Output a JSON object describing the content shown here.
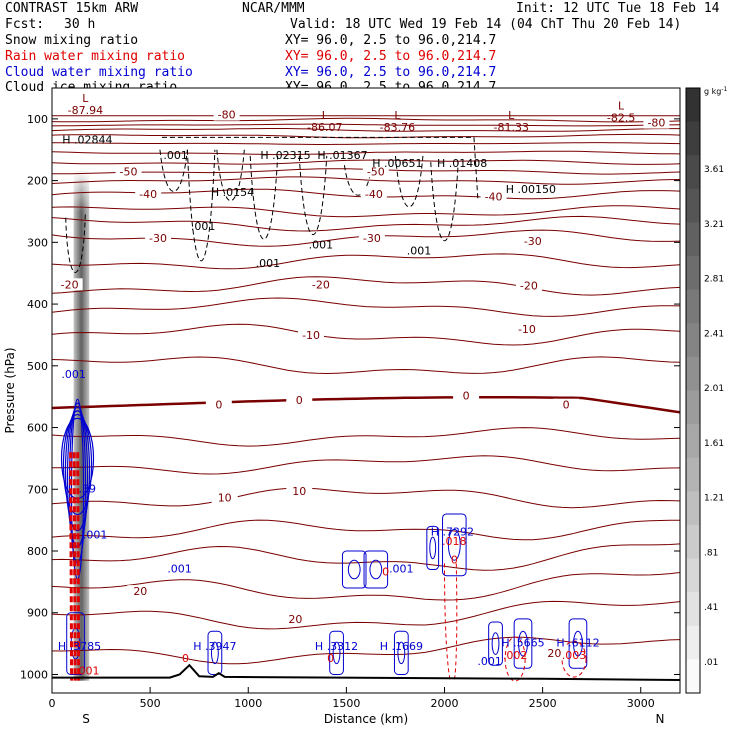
{
  "header": {
    "model": "CONTRAST 15km ARW",
    "org": "NCAR/MMM",
    "init": "Init: 12 UTC Tue 18 Feb 14",
    "fcst_label": "Fcst:",
    "fcst_value": "30 h",
    "valid": "Valid: 18 UTC Wed 19 Feb 14 (04 ChT Thu 20 Feb 14)"
  },
  "fields": [
    {
      "name": "Snow mixing ratio",
      "xy": "XY=  96.0,  2.5 to  96.0,214.7",
      "color": "#000000"
    },
    {
      "name": "Rain water mixing ratio",
      "xy": "XY=  96.0,  2.5 to  96.0,214.7",
      "color": "#e00000"
    },
    {
      "name": "Cloud water mixing ratio",
      "xy": "XY=  96.0,  2.5 to  96.0,214.7",
      "color": "#0000d0"
    },
    {
      "name": "Cloud ice mixing ratio",
      "xy": "XY=  96.0,  2.5 to  96.0,214.7",
      "color": "#000000"
    }
  ],
  "chart_data": {
    "type": "cross-section contour",
    "xlabel": "Distance (km)",
    "ylabel": "Pressure (hPa)",
    "xlim": [
      0,
      3200
    ],
    "ylim": [
      1030,
      50
    ],
    "x_ticks": [
      0,
      500,
      1000,
      1500,
      2000,
      2500,
      3000
    ],
    "y_ticks": [
      100,
      200,
      300,
      400,
      500,
      600,
      700,
      800,
      900,
      1000
    ],
    "x_end_labels": {
      "left": "S",
      "right": "N"
    },
    "colorbar": {
      "unit": "g kg",
      "unit_sup": "-1",
      "labels": [
        "3.61",
        "3.21",
        "2.81",
        "2.41",
        "2.01",
        "1.61",
        "1.21",
        ".81",
        ".41",
        ".01"
      ],
      "min": 0.01,
      "max": 3.61
    },
    "temperature_contours": {
      "color": "#7a0000",
      "labels": [
        {
          "x": 890,
          "p": 93,
          "text": "-80"
        },
        {
          "x": 3080,
          "p": 106,
          "text": "-80"
        },
        {
          "x": 390,
          "p": 185,
          "text": "-50"
        },
        {
          "x": 1650,
          "p": 185,
          "text": "-50"
        },
        {
          "x": 490,
          "p": 222,
          "text": "-40"
        },
        {
          "x": 1640,
          "p": 222,
          "text": "-40"
        },
        {
          "x": 2250,
          "p": 226,
          "text": "-40"
        },
        {
          "x": 540,
          "p": 293,
          "text": "-30"
        },
        {
          "x": 1630,
          "p": 293,
          "text": "-30"
        },
        {
          "x": 2450,
          "p": 298,
          "text": "-30"
        },
        {
          "x": 90,
          "p": 368,
          "text": "-20"
        },
        {
          "x": 1370,
          "p": 368,
          "text": "-20"
        },
        {
          "x": 2430,
          "p": 370,
          "text": "-20"
        },
        {
          "x": 1320,
          "p": 450,
          "text": "-10"
        },
        {
          "x": 2420,
          "p": 440,
          "text": "-10"
        },
        {
          "x": 850,
          "p": 563,
          "text": "0"
        },
        {
          "x": 1260,
          "p": 555,
          "text": "0"
        },
        {
          "x": 2110,
          "p": 548,
          "text": "0"
        },
        {
          "x": 2620,
          "p": 563,
          "text": "0"
        },
        {
          "x": 880,
          "p": 713,
          "text": "10"
        },
        {
          "x": 1260,
          "p": 703,
          "text": "10"
        },
        {
          "x": 450,
          "p": 865,
          "text": "20"
        },
        {
          "x": 1240,
          "p": 910,
          "text": "20"
        },
        {
          "x": 2560,
          "p": 965,
          "text": "20"
        }
      ],
      "minima_labels": [
        {
          "x": 170,
          "p": 86,
          "mark": "L",
          "value": "-87.94"
        },
        {
          "x": 1390,
          "p": 113,
          "mark": "L",
          "value": "-86.07"
        },
        {
          "x": 1760,
          "p": 113,
          "mark": "L",
          "value": "-83.76"
        },
        {
          "x": 2340,
          "p": 113,
          "mark": "L",
          "value": "-81.33"
        },
        {
          "x": 2900,
          "p": 98,
          "mark": "L",
          "value": "-82.5"
        }
      ]
    },
    "snow_ice_labels": [
      {
        "x": 180,
        "p": 140,
        "text": "H .02844"
      },
      {
        "x": 1190,
        "p": 165,
        "text": "H .02315"
      },
      {
        "x": 1480,
        "p": 165,
        "text": "H .01367"
      },
      {
        "x": 1760,
        "p": 178,
        "text": "H .00651"
      },
      {
        "x": 2090,
        "p": 178,
        "text": "H .01408"
      },
      {
        "x": 2440,
        "p": 220,
        "text": "H .00150"
      },
      {
        "x": 920,
        "p": 225,
        "text": "H .0154"
      },
      {
        "x": 630,
        "p": 165,
        "text": ".001"
      },
      {
        "x": 770,
        "p": 280,
        "text": ".001"
      },
      {
        "x": 1100,
        "p": 340,
        "text": ".001"
      },
      {
        "x": 1370,
        "p": 310,
        "text": ".001"
      },
      {
        "x": 1870,
        "p": 320,
        "text": ".001"
      }
    ],
    "cloud_water_labels": [
      {
        "x": 110,
        "p": 520,
        "text": ".001"
      },
      {
        "x": 180,
        "p": 705,
        "text": ".39"
      },
      {
        "x": 220,
        "p": 780,
        "text": ".001"
      },
      {
        "x": 650,
        "p": 835,
        "text": ".001"
      },
      {
        "x": 1780,
        "p": 835,
        "text": ".001"
      },
      {
        "x": 140,
        "p": 960,
        "text": "H .3785"
      },
      {
        "x": 830,
        "p": 960,
        "text": "H .3947"
      },
      {
        "x": 1450,
        "p": 960,
        "text": "H .3312"
      },
      {
        "x": 1780,
        "p": 960,
        "text": "H .1669"
      },
      {
        "x": 2040,
        "p": 775,
        "text": "H .7292"
      },
      {
        "x": 2400,
        "p": 955,
        "text": "H .5665"
      },
      {
        "x": 2680,
        "p": 955,
        "text": "H .6112"
      },
      {
        "x": 2230,
        "p": 985,
        "text": ".001"
      }
    ],
    "rain_labels": [
      {
        "x": 2050,
        "p": 790,
        "text": ".018"
      },
      {
        "x": 180,
        "p": 1000,
        "text": ".001"
      },
      {
        "x": 2360,
        "p": 975,
        "text": ".002"
      },
      {
        "x": 2660,
        "p": 975,
        "text": ".003"
      },
      {
        "x": 680,
        "p": 980,
        "text": "0"
      },
      {
        "x": 1420,
        "p": 980,
        "text": "0"
      },
      {
        "x": 2050,
        "p": 820,
        "text": "0"
      },
      {
        "x": 1700,
        "p": 840,
        "text": "0"
      }
    ]
  }
}
